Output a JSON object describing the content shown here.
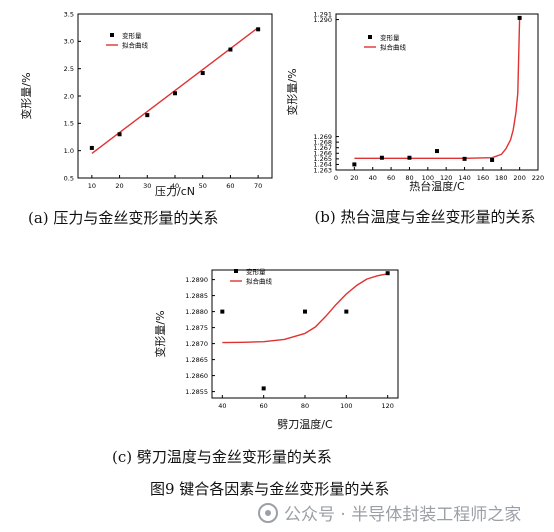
{
  "chart_data": [
    {
      "type": "scatter",
      "xlabel": "压力/cN",
      "ylabel": "变形量/%",
      "xlim": [
        5,
        75
      ],
      "ylim": [
        0.5,
        3.5
      ],
      "xticks": [
        "10",
        "20",
        "30",
        "40",
        "50",
        "60",
        "70"
      ],
      "yticks": [
        "0.5",
        "1.0",
        "1.5",
        "2.0",
        "2.5",
        "3.0",
        "3.5"
      ],
      "legend": {
        "placement": "top-left",
        "points_label": "变形量",
        "fit_label": "拟合曲线"
      },
      "series": [
        {
          "name": "变形量",
          "x": [
            10,
            20,
            30,
            40,
            50,
            60,
            70
          ],
          "y": [
            1.05,
            1.3,
            1.65,
            2.05,
            2.42,
            2.85,
            3.22
          ]
        }
      ],
      "fit": {
        "x": [
          10,
          70
        ],
        "y": [
          0.95,
          3.25
        ]
      }
    },
    {
      "type": "scatter",
      "xlabel": "热台温度/C",
      "ylabel": "变形量/%",
      "xlim": [
        0,
        220
      ],
      "ylim": [
        1.263,
        1.291
      ],
      "xticks": [
        "0",
        "20",
        "40",
        "60",
        "80",
        "100",
        "120",
        "140",
        "160",
        "180",
        "200",
        "220"
      ],
      "yticks": [
        "1.263",
        "1.264",
        "1.265",
        "1.266",
        "1.267",
        "1.268",
        "1.269",
        "1.290",
        "1.291"
      ],
      "legend": {
        "placement": "top-left",
        "points_label": "变形量",
        "fit_label": "拟合曲线"
      },
      "series": [
        {
          "name": "变形量",
          "x": [
            20,
            50,
            80,
            110,
            140,
            170,
            200
          ],
          "y": [
            1.264,
            1.2652,
            1.2652,
            1.2664,
            1.265,
            1.2648,
            1.2903
          ]
        }
      ],
      "fit": {
        "x": [
          20,
          60,
          100,
          140,
          170,
          180,
          185,
          190,
          193,
          196,
          198,
          200
        ],
        "y": [
          1.2651,
          1.2651,
          1.2651,
          1.2651,
          1.2652,
          1.2658,
          1.2668,
          1.2684,
          1.2702,
          1.2734,
          1.2768,
          1.2902
        ]
      }
    },
    {
      "type": "scatter",
      "xlabel": "劈刀温度/C",
      "ylabel": "变形量/%",
      "xlim": [
        35,
        125
      ],
      "ylim": [
        1.2853,
        1.2893
      ],
      "xticks": [
        "40",
        "60",
        "80",
        "100",
        "120"
      ],
      "yticks": [
        "1.2855",
        "1.2860",
        "1.2865",
        "1.2870",
        "1.2875",
        "1.2880",
        "1.2885",
        "1.2890"
      ],
      "legend": {
        "placement": "top-left",
        "points_label": "变形量",
        "fit_label": "拟合曲线"
      },
      "series": [
        {
          "name": "变形量",
          "x": [
            40,
            60,
            80,
            100,
            120
          ],
          "y": [
            1.288,
            1.2856,
            1.288,
            1.288,
            1.2892
          ]
        }
      ],
      "fit": {
        "x": [
          40,
          50,
          60,
          70,
          80,
          85,
          90,
          95,
          100,
          105,
          110,
          115,
          120
        ],
        "y": [
          1.28703,
          1.28704,
          1.28706,
          1.28713,
          1.28732,
          1.28752,
          1.28785,
          1.28822,
          1.28855,
          1.28882,
          1.28902,
          1.28912,
          1.28918
        ]
      }
    }
  ],
  "captions": {
    "a": "(a) 压力与金丝变形量的关系",
    "b": "(b) 热台温度与金丝变形量的关系",
    "c": "(c) 劈刀温度与金丝变形量的关系"
  },
  "figure_title": "图9  键合各因素与金丝变形量的关系",
  "watermark": "公众号 · 半导体封装工程师之家"
}
